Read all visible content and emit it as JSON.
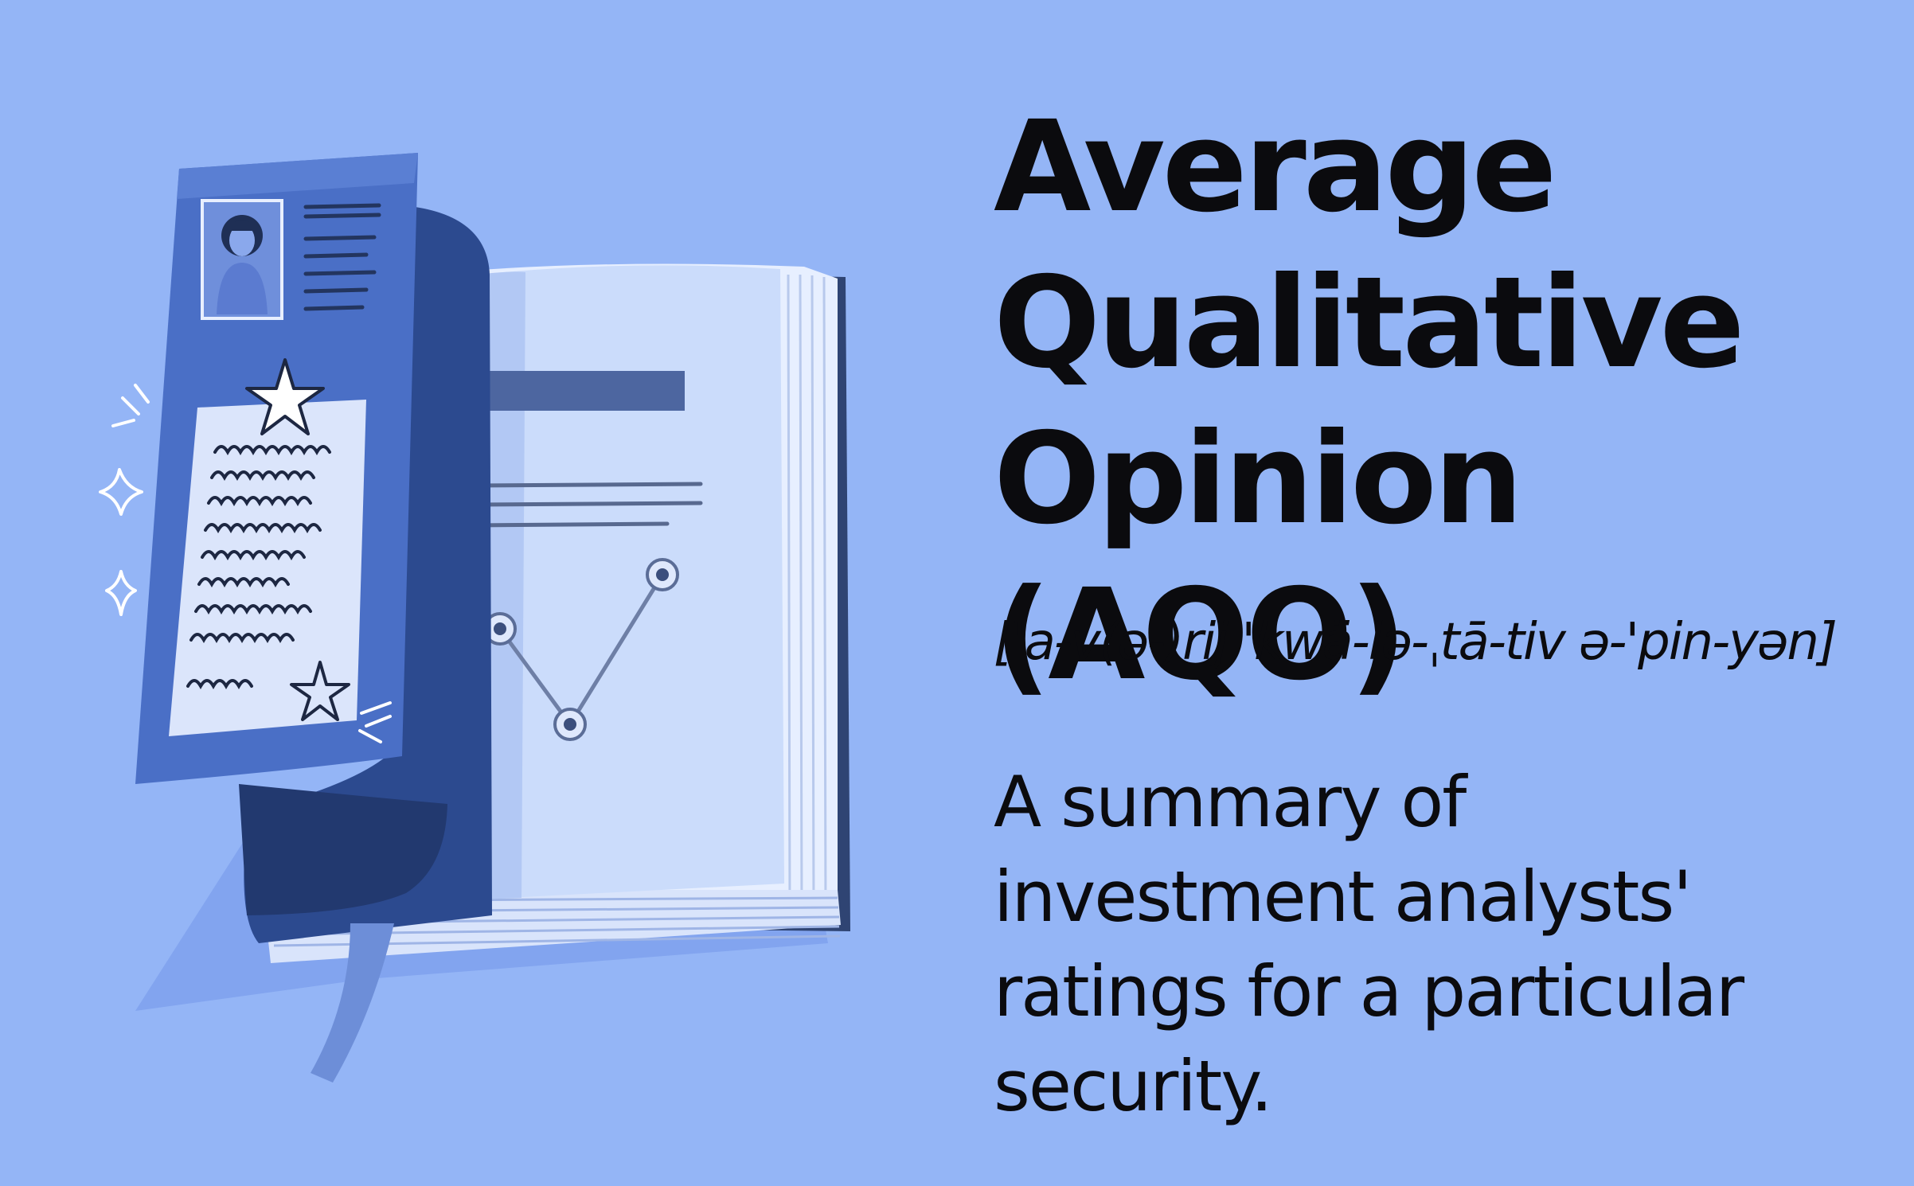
{
  "term": {
    "title": "Average Qualitative Opinion (AQO)",
    "pronunciation": "['a-v(ə-)rij 'kwä-lə-ˌtā-tiv ə-'pin-yən]",
    "definition": "A summary of investment analysts' ratings for a particular security."
  },
  "illustration": {
    "subject": "open-book-with-analyst-report",
    "icons": [
      "book-icon",
      "analyst-portrait-icon",
      "star-icon",
      "sparkle-icon",
      "line-chart-icon",
      "bookmark-ribbon-icon"
    ]
  },
  "colors": {
    "background": "#94b5f6",
    "book_cover": "#4a6fc6",
    "book_cover_dark": "#2c4a8f",
    "page_light": "#cbdcfb",
    "text": "#0b0b0e"
  }
}
